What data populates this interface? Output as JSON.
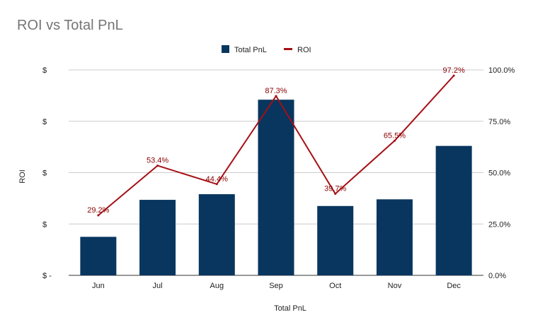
{
  "chart_data": {
    "type": "bar+line",
    "title": "ROI vs Total PnL",
    "xlabel": "Total PnL",
    "ylabel": "ROI",
    "categories": [
      "Jun",
      "Jul",
      "Aug",
      "Sep",
      "Oct",
      "Nov",
      "Dec"
    ],
    "series": [
      {
        "name": "Total PnL",
        "type": "bar",
        "axis": "left",
        "color": "#08365f",
        "values": [
          0.75,
          1.47,
          1.58,
          3.42,
          1.35,
          1.48,
          2.52
        ]
      },
      {
        "name": "ROI",
        "type": "line",
        "axis": "right",
        "color": "#a50f15",
        "values": [
          29.2,
          53.4,
          44.4,
          87.3,
          39.7,
          65.5,
          97.2
        ],
        "data_labels": [
          "29.2%",
          "53.4%",
          "44.4%",
          "87.3%",
          "39.7%",
          "65.5%",
          "97.2%"
        ]
      }
    ],
    "left_axis": {
      "ylim": [
        0,
        4
      ],
      "ticks": [
        0,
        1,
        2,
        3,
        4
      ],
      "tick_labels": [
        "$ -",
        "$",
        "$",
        "$",
        "$"
      ]
    },
    "right_axis": {
      "ylim": [
        0,
        100
      ],
      "ticks": [
        0,
        25,
        50,
        75,
        100
      ],
      "tick_labels": [
        "0.0%",
        "25.0%",
        "50.0%",
        "75.0%",
        "100.0%"
      ]
    },
    "legend": {
      "position": "top-center",
      "entries": [
        "Total PnL",
        "ROI"
      ]
    },
    "grid": true
  }
}
